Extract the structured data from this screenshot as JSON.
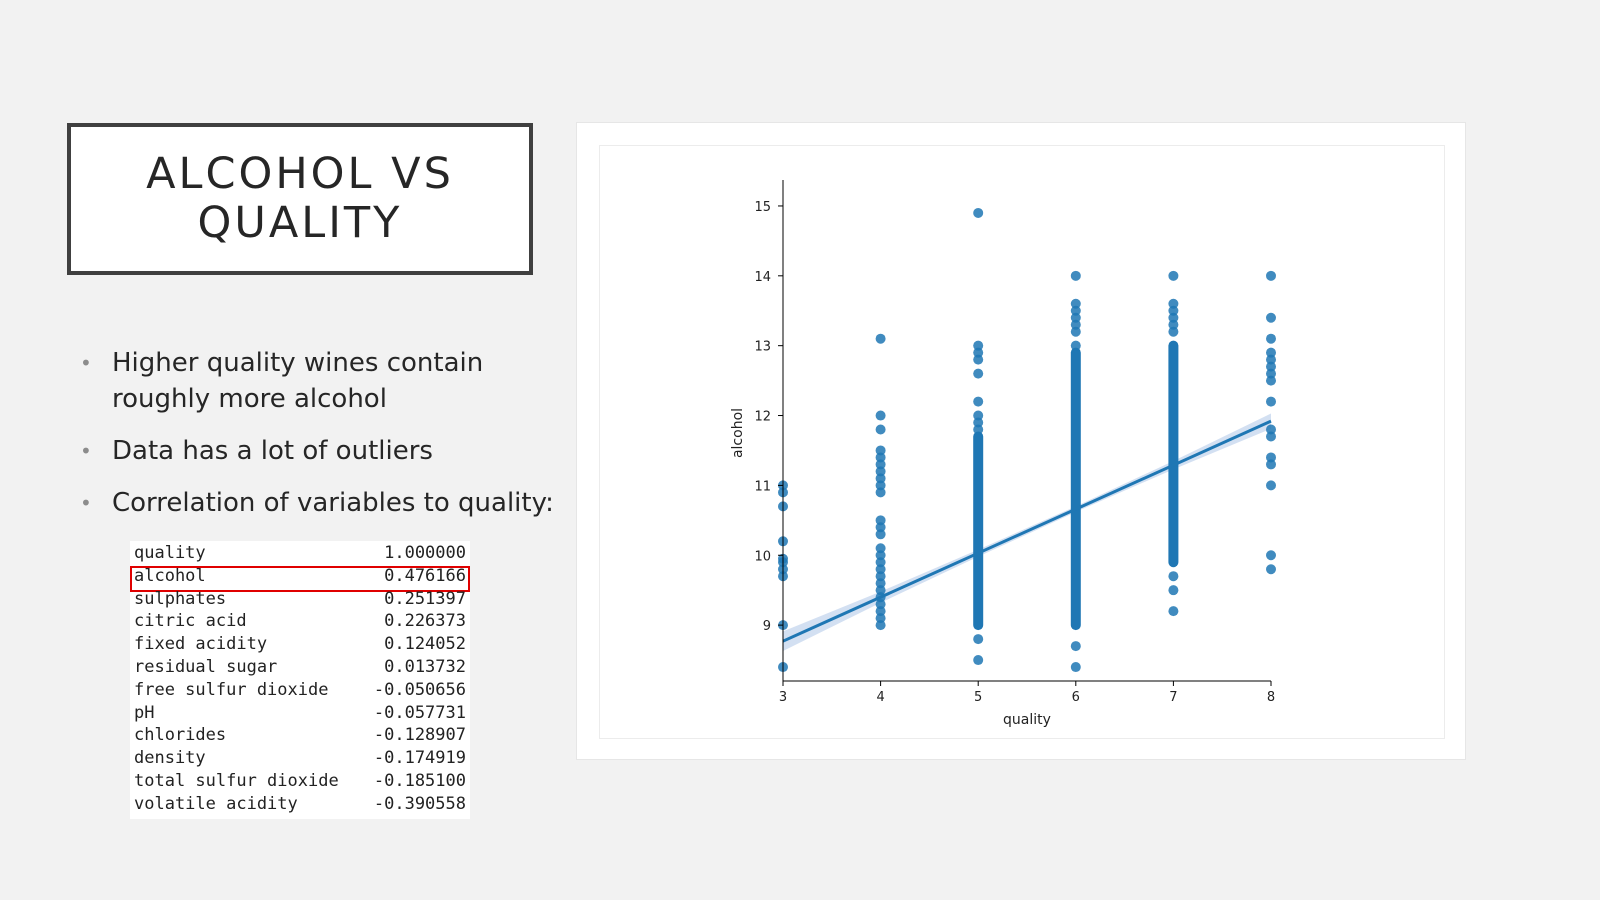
{
  "slide": {
    "title_line1": "ALCOHOL VS",
    "title_line2": "QUALITY",
    "bullets": [
      "Higher quality wines contain roughly more alcohol",
      "Data has a lot of outliers",
      "Correlation of variables to quality:"
    ]
  },
  "correlation_table": [
    {
      "variable": "quality",
      "value": "1.000000"
    },
    {
      "variable": "alcohol",
      "value": "0.476166"
    },
    {
      "variable": "sulphates",
      "value": "0.251397"
    },
    {
      "variable": "citric acid",
      "value": "0.226373"
    },
    {
      "variable": "fixed acidity",
      "value": "0.124052"
    },
    {
      "variable": "residual sugar",
      "value": "0.013732"
    },
    {
      "variable": "free sulfur dioxide",
      "value": "-0.050656"
    },
    {
      "variable": "pH",
      "value": "-0.057731"
    },
    {
      "variable": "chlorides",
      "value": "-0.128907"
    },
    {
      "variable": "density",
      "value": "-0.174919"
    },
    {
      "variable": "total sulfur dioxide",
      "value": "-0.185100"
    },
    {
      "variable": "volatile acidity",
      "value": "-0.390558"
    }
  ],
  "highlighted_variable": "alcohol",
  "colors": {
    "point": "#1f77b4",
    "line": "#1f77b4",
    "ci_band": "#aec7e8",
    "highlight": "#e00000"
  },
  "chart_data": {
    "type": "scatter",
    "title": "",
    "xlabel": "quality",
    "ylabel": "alcohol",
    "xlim": [
      3,
      8
    ],
    "ylim": [
      8.2,
      15.3
    ],
    "xticks": [
      3,
      4,
      5,
      6,
      7,
      8
    ],
    "yticks": [
      9,
      10,
      11,
      12,
      13,
      14,
      15
    ],
    "grid": false,
    "regression_line": {
      "x": [
        3,
        8
      ],
      "y": [
        8.77,
        11.92
      ]
    },
    "confidence_band": true,
    "series": [
      {
        "points": [
          {
            "x": 3,
            "y": 11.0
          },
          {
            "x": 3,
            "y": 10.9
          },
          {
            "x": 3,
            "y": 10.7
          },
          {
            "x": 3,
            "y": 10.2
          },
          {
            "x": 3,
            "y": 9.95
          },
          {
            "x": 3,
            "y": 9.9
          },
          {
            "x": 3,
            "y": 9.8
          },
          {
            "x": 3,
            "y": 9.7
          },
          {
            "x": 3,
            "y": 9.0
          },
          {
            "x": 3,
            "y": 8.4
          },
          {
            "x": 4,
            "y": 13.1
          },
          {
            "x": 4,
            "y": 12.0
          },
          {
            "x": 4,
            "y": 11.8
          },
          {
            "x": 4,
            "y": 11.5
          },
          {
            "x": 4,
            "y": 11.4
          },
          {
            "x": 4,
            "y": 11.3
          },
          {
            "x": 4,
            "y": 11.2
          },
          {
            "x": 4,
            "y": 11.1
          },
          {
            "x": 4,
            "y": 11.0
          },
          {
            "x": 4,
            "y": 10.9
          },
          {
            "x": 4,
            "y": 10.5
          },
          {
            "x": 4,
            "y": 10.4
          },
          {
            "x": 4,
            "y": 10.3
          },
          {
            "x": 4,
            "y": 10.1
          },
          {
            "x": 4,
            "y": 10.0
          },
          {
            "x": 4,
            "y": 9.9
          },
          {
            "x": 4,
            "y": 9.8
          },
          {
            "x": 4,
            "y": 9.7
          },
          {
            "x": 4,
            "y": 9.6
          },
          {
            "x": 4,
            "y": 9.5
          },
          {
            "x": 4,
            "y": 9.4
          },
          {
            "x": 4,
            "y": 9.3
          },
          {
            "x": 4,
            "y": 9.2
          },
          {
            "x": 4,
            "y": 9.1
          },
          {
            "x": 4,
            "y": 9.0
          },
          {
            "x": 5,
            "y": 14.9
          },
          {
            "x": 5,
            "y": 13.0
          },
          {
            "x": 5,
            "y": 12.9
          },
          {
            "x": 5,
            "y": 12.8
          },
          {
            "x": 5,
            "y": 12.6
          },
          {
            "x": 5,
            "y": 12.2
          },
          {
            "x": 5,
            "y": 12.0
          },
          {
            "x": 5,
            "y": 11.9
          },
          {
            "x": 5,
            "y": 11.8
          },
          {
            "x": 5,
            "y": 8.8
          },
          {
            "x": 5,
            "y": 8.5
          },
          {
            "x": 6,
            "y": 14.0
          },
          {
            "x": 6,
            "y": 13.6
          },
          {
            "x": 6,
            "y": 13.5
          },
          {
            "x": 6,
            "y": 13.4
          },
          {
            "x": 6,
            "y": 13.3
          },
          {
            "x": 6,
            "y": 13.2
          },
          {
            "x": 6,
            "y": 13.0
          },
          {
            "x": 6,
            "y": 8.7
          },
          {
            "x": 6,
            "y": 8.4
          },
          {
            "x": 7,
            "y": 14.0
          },
          {
            "x": 7,
            "y": 13.6
          },
          {
            "x": 7,
            "y": 13.5
          },
          {
            "x": 7,
            "y": 13.4
          },
          {
            "x": 7,
            "y": 13.3
          },
          {
            "x": 7,
            "y": 13.2
          },
          {
            "x": 7,
            "y": 9.7
          },
          {
            "x": 7,
            "y": 9.5
          },
          {
            "x": 7,
            "y": 9.2
          },
          {
            "x": 8,
            "y": 14.0
          },
          {
            "x": 8,
            "y": 13.4
          },
          {
            "x": 8,
            "y": 13.1
          },
          {
            "x": 8,
            "y": 12.9
          },
          {
            "x": 8,
            "y": 12.8
          },
          {
            "x": 8,
            "y": 12.7
          },
          {
            "x": 8,
            "y": 12.6
          },
          {
            "x": 8,
            "y": 12.5
          },
          {
            "x": 8,
            "y": 12.2
          },
          {
            "x": 8,
            "y": 11.8
          },
          {
            "x": 8,
            "y": 11.7
          },
          {
            "x": 8,
            "y": 11.4
          },
          {
            "x": 8,
            "y": 11.3
          },
          {
            "x": 8,
            "y": 11.0
          },
          {
            "x": 8,
            "y": 10.0
          },
          {
            "x": 8,
            "y": 9.8
          }
        ],
        "dense_ranges": [
          {
            "x": 5,
            "y_min": 9.0,
            "y_max": 11.7
          },
          {
            "x": 6,
            "y_min": 9.0,
            "y_max": 12.9
          },
          {
            "x": 7,
            "y_min": 9.9,
            "y_max": 13.0
          }
        ]
      }
    ]
  }
}
